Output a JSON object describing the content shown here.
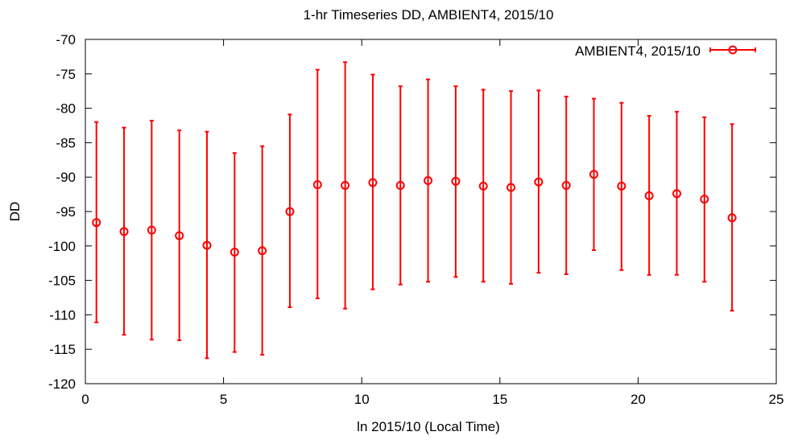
{
  "chart_data": {
    "type": "scatter",
    "title": "1-hr Timeseries DD, AMBIENT4, 2015/10",
    "xlabel": "ln 2015/10 (Local Time)",
    "ylabel": "DD",
    "xlim": [
      0,
      25
    ],
    "ylim": [
      -120,
      -70
    ],
    "xticks": [
      0,
      5,
      10,
      15,
      20,
      25
    ],
    "yticks": [
      -70,
      -75,
      -80,
      -85,
      -90,
      -95,
      -100,
      -105,
      -110,
      -115,
      -120
    ],
    "grid": false,
    "legend_position": "top-right",
    "series": [
      {
        "name": "AMBIENT4, 2015/10",
        "color": "#ff0000",
        "marker": "circle",
        "error_bars": true,
        "points": [
          {
            "x": 0.4,
            "y": -96.6,
            "ylow": -111.1,
            "yhigh": -82.0
          },
          {
            "x": 1.4,
            "y": -97.9,
            "ylow": -112.9,
            "yhigh": -82.8
          },
          {
            "x": 2.4,
            "y": -97.7,
            "ylow": -113.6,
            "yhigh": -81.8
          },
          {
            "x": 3.4,
            "y": -98.5,
            "ylow": -113.7,
            "yhigh": -83.2
          },
          {
            "x": 4.4,
            "y": -99.9,
            "ylow": -116.3,
            "yhigh": -83.4
          },
          {
            "x": 5.4,
            "y": -100.9,
            "ylow": -115.4,
            "yhigh": -86.5
          },
          {
            "x": 6.4,
            "y": -100.7,
            "ylow": -115.8,
            "yhigh": -85.5
          },
          {
            "x": 7.4,
            "y": -95.0,
            "ylow": -108.9,
            "yhigh": -80.9
          },
          {
            "x": 8.4,
            "y": -91.1,
            "ylow": -107.6,
            "yhigh": -74.4
          },
          {
            "x": 9.4,
            "y": -91.2,
            "ylow": -109.1,
            "yhigh": -73.3
          },
          {
            "x": 10.4,
            "y": -90.8,
            "ylow": -106.3,
            "yhigh": -75.1
          },
          {
            "x": 11.4,
            "y": -91.2,
            "ylow": -105.6,
            "yhigh": -76.8
          },
          {
            "x": 12.4,
            "y": -90.5,
            "ylow": -105.2,
            "yhigh": -75.8
          },
          {
            "x": 13.4,
            "y": -90.6,
            "ylow": -104.5,
            "yhigh": -76.8
          },
          {
            "x": 14.4,
            "y": -91.3,
            "ylow": -105.2,
            "yhigh": -77.3
          },
          {
            "x": 15.4,
            "y": -91.5,
            "ylow": -105.5,
            "yhigh": -77.5
          },
          {
            "x": 16.4,
            "y": -90.7,
            "ylow": -103.9,
            "yhigh": -77.4
          },
          {
            "x": 17.4,
            "y": -91.2,
            "ylow": -104.1,
            "yhigh": -78.3
          },
          {
            "x": 18.4,
            "y": -89.6,
            "ylow": -100.6,
            "yhigh": -78.6
          },
          {
            "x": 19.4,
            "y": -91.3,
            "ylow": -103.5,
            "yhigh": -79.2
          },
          {
            "x": 20.4,
            "y": -92.7,
            "ylow": -104.2,
            "yhigh": -81.1
          },
          {
            "x": 21.4,
            "y": -92.4,
            "ylow": -104.2,
            "yhigh": -80.5
          },
          {
            "x": 22.4,
            "y": -93.2,
            "ylow": -105.2,
            "yhigh": -81.3
          },
          {
            "x": 23.4,
            "y": -95.9,
            "ylow": -109.4,
            "yhigh": -82.3
          }
        ]
      }
    ]
  }
}
